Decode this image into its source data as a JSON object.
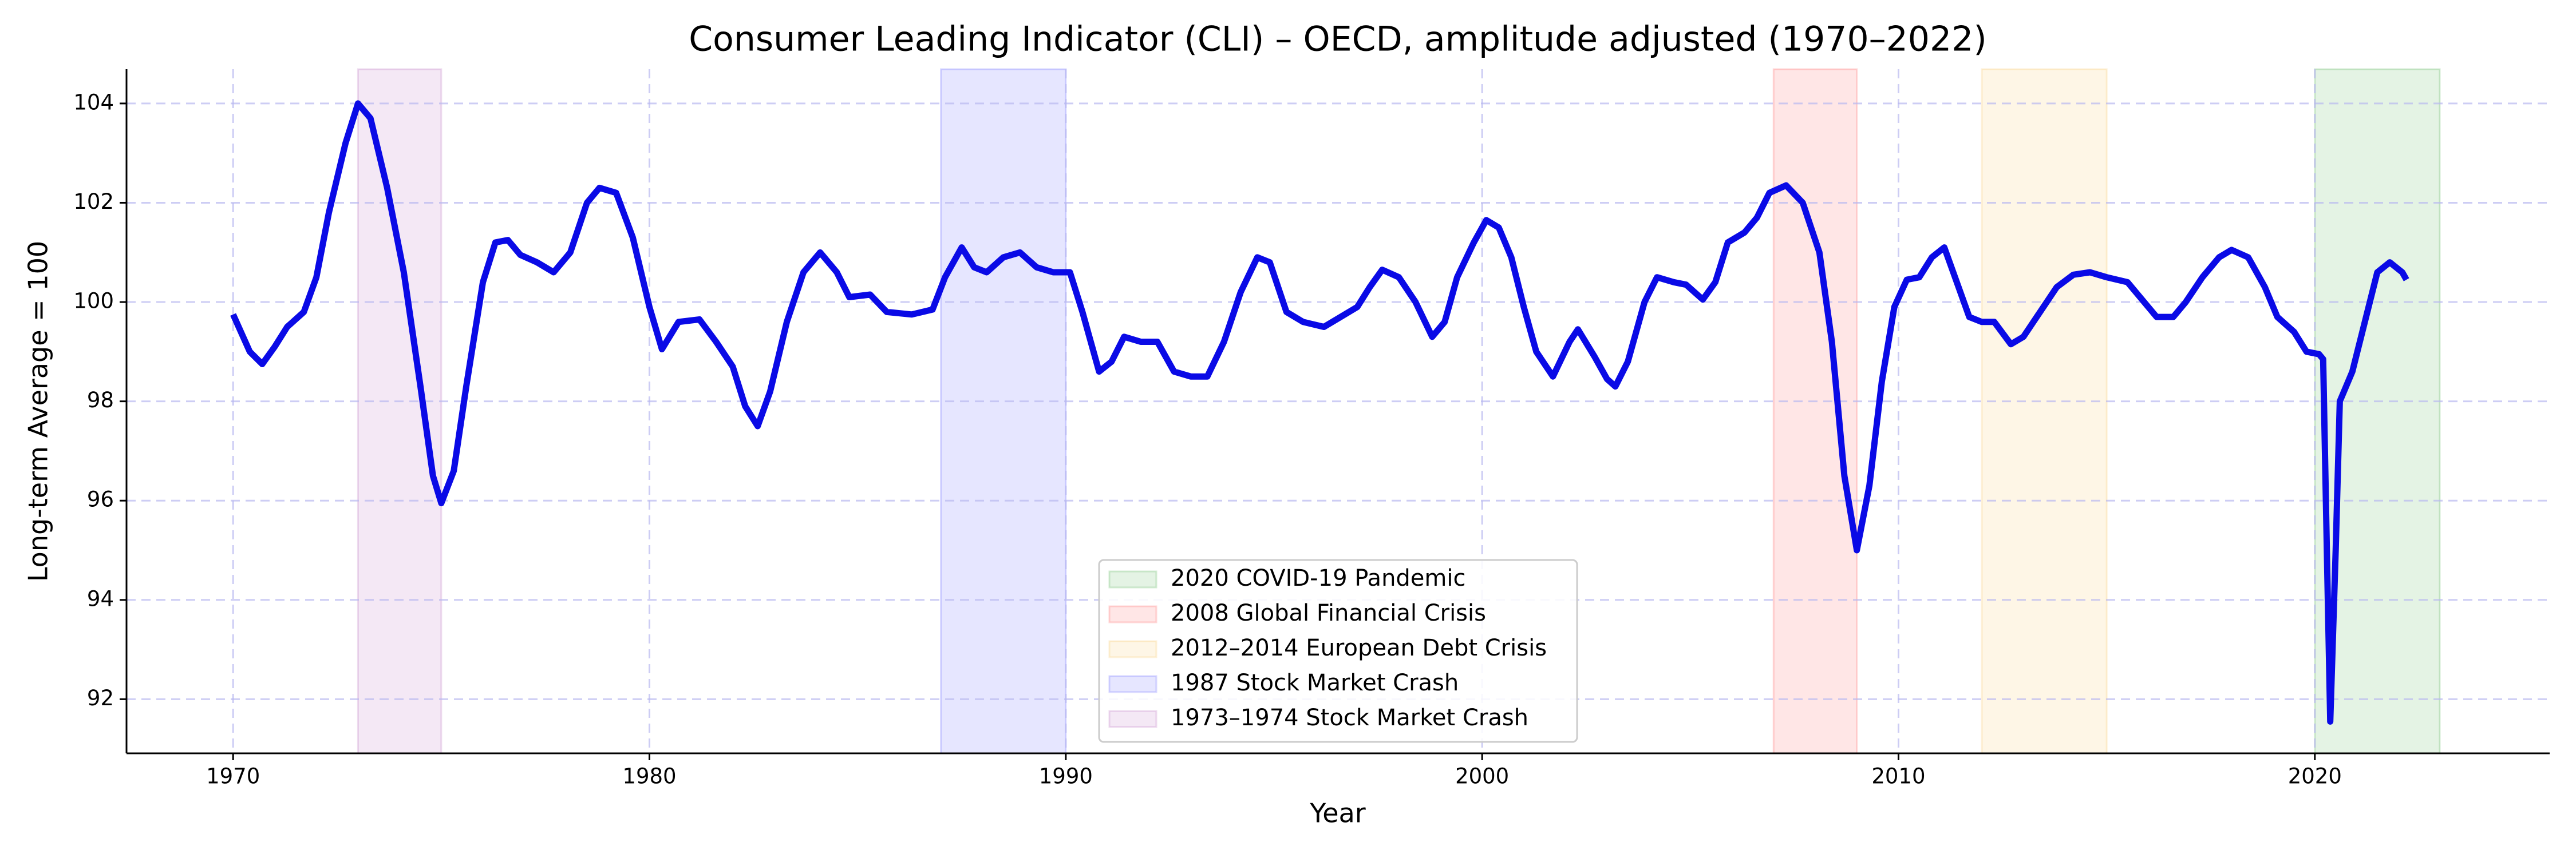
{
  "chart_data": {
    "type": "line",
    "title": "Consumer Leading Indicator (CLI) – OECD, amplitude adjusted (1970–2022)",
    "x_label": "Year",
    "y_label": "Long-term Average = 100",
    "xlim": [
      1967.44,
      2025.64
    ],
    "ylim": [
      90.91,
      104.69
    ],
    "xticks": [
      1970,
      1980,
      1990,
      2000,
      2010,
      2020
    ],
    "yticks": [
      92,
      94,
      96,
      98,
      100,
      102,
      104
    ],
    "grid": true,
    "legend": "lower center",
    "color": "#0a0ae6",
    "spans": [
      {
        "label": "2020 COVID-19 Pandemic",
        "start": 2020,
        "end": 2023,
        "color": "#2ca02c"
      },
      {
        "label": "2008 Global Financial Crisis",
        "start": 2007,
        "end": 2009,
        "color": "#ff3b3b"
      },
      {
        "label": "2012–2014 European Debt Crisis",
        "start": 2012,
        "end": 2015,
        "color": "#f5b83d"
      },
      {
        "label": "1987 Stock Market Crash",
        "start": 1987,
        "end": 1990,
        "color": "#4040ff"
      },
      {
        "label": "1973–1974 Stock Market Crash",
        "start": 1973,
        "end": 1975,
        "color": "#a84fb0"
      }
    ],
    "x": [
      1970.0,
      1970.4,
      1970.7,
      1971.0,
      1971.3,
      1971.7,
      1972.0,
      1972.3,
      1972.7,
      1973.0,
      1973.3,
      1973.7,
      1974.1,
      1974.5,
      1974.8,
      1975.0,
      1975.3,
      1975.6,
      1976.0,
      1976.3,
      1976.6,
      1976.9,
      1977.3,
      1977.7,
      1978.1,
      1978.5,
      1978.8,
      1979.2,
      1979.6,
      1980.0,
      1980.3,
      1980.7,
      1981.2,
      1981.6,
      1982.0,
      1982.3,
      1982.6,
      1982.9,
      1983.3,
      1983.7,
      1984.1,
      1984.5,
      1984.8,
      1985.3,
      1985.7,
      1986.3,
      1986.8,
      1987.1,
      1987.5,
      1987.8,
      1988.1,
      1988.5,
      1988.9,
      1989.3,
      1989.7,
      1990.1,
      1990.4,
      1990.8,
      1991.1,
      1991.4,
      1991.8,
      1992.2,
      1992.6,
      1993.0,
      1993.4,
      1993.8,
      1994.2,
      1994.6,
      1994.9,
      1995.3,
      1995.7,
      1996.2,
      1996.6,
      1997.0,
      1997.3,
      1997.6,
      1998.0,
      1998.4,
      1998.8,
      1999.1,
      1999.4,
      1999.8,
      2000.1,
      2000.4,
      2000.7,
      2001.0,
      2001.3,
      2001.7,
      2002.1,
      2002.3,
      2002.7,
      2003.0,
      2003.2,
      2003.5,
      2003.9,
      2004.2,
      2004.6,
      2004.9,
      2005.3,
      2005.6,
      2005.9,
      2006.3,
      2006.6,
      2006.9,
      2007.3,
      2007.7,
      2008.1,
      2008.4,
      2008.7,
      2009.0,
      2009.3,
      2009.6,
      2009.9,
      2010.2,
      2010.5,
      2010.8,
      2011.1,
      2011.4,
      2011.7,
      2012.0,
      2012.3,
      2012.7,
      2013.0,
      2013.4,
      2013.8,
      2014.2,
      2014.6,
      2015.0,
      2015.5,
      2015.8,
      2016.2,
      2016.6,
      2016.9,
      2017.3,
      2017.7,
      2018.0,
      2018.4,
      2018.8,
      2019.1,
      2019.5,
      2019.8,
      2020.1,
      2020.2,
      2020.3,
      2020.37,
      2020.5,
      2020.6,
      2020.9,
      2021.2,
      2021.5,
      2021.8,
      2022.1,
      2022.2
    ],
    "values": [
      99.75,
      99.0,
      98.75,
      99.1,
      99.5,
      99.8,
      100.5,
      101.8,
      103.2,
      104.0,
      103.7,
      102.3,
      100.6,
      98.3,
      96.5,
      95.95,
      96.6,
      98.3,
      100.4,
      101.2,
      101.25,
      100.95,
      100.8,
      100.6,
      101.0,
      102.0,
      102.3,
      102.2,
      101.3,
      99.9,
      99.05,
      99.6,
      99.65,
      99.2,
      98.7,
      97.9,
      97.5,
      98.2,
      99.6,
      100.6,
      101.0,
      100.6,
      100.1,
      100.15,
      99.8,
      99.75,
      99.85,
      100.5,
      101.1,
      100.7,
      100.6,
      100.9,
      101.0,
      100.7,
      100.6,
      100.6,
      99.8,
      98.6,
      98.8,
      99.3,
      99.2,
      99.2,
      98.6,
      98.5,
      98.5,
      99.2,
      100.2,
      100.9,
      100.8,
      99.8,
      99.6,
      99.5,
      99.7,
      99.9,
      100.3,
      100.65,
      100.5,
      100.0,
      99.3,
      99.6,
      100.5,
      101.2,
      101.65,
      101.5,
      100.9,
      99.9,
      99.0,
      98.5,
      99.2,
      99.45,
      98.9,
      98.45,
      98.3,
      98.8,
      100.0,
      100.5,
      100.4,
      100.35,
      100.05,
      100.4,
      101.2,
      101.4,
      101.7,
      102.2,
      102.35,
      102.0,
      101.0,
      99.2,
      96.5,
      95.0,
      96.3,
      98.4,
      99.9,
      100.45,
      100.5,
      100.9,
      101.1,
      100.4,
      99.7,
      99.6,
      99.6,
      99.15,
      99.3,
      99.8,
      100.3,
      100.55,
      100.6,
      100.5,
      100.4,
      100.1,
      99.7,
      99.7,
      100.0,
      100.5,
      100.9,
      101.05,
      100.9,
      100.3,
      99.7,
      99.4,
      99.0,
      98.95,
      98.85,
      94.5,
      91.55,
      95.0,
      98.0,
      98.6,
      99.6,
      100.6,
      100.8,
      100.6,
      100.45
    ]
  }
}
